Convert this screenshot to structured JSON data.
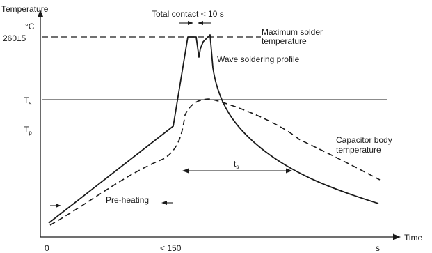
{
  "diagram": {
    "y_axis": {
      "title": "Temperature",
      "unit": "°C",
      "ticks": {
        "max_temp": "260±5",
        "t_s": "T",
        "t_s_sub": "s",
        "t_p": "T",
        "t_p_sub": "p"
      }
    },
    "x_axis": {
      "title": "Time",
      "ticks": {
        "origin": "0",
        "preheat_end": "< 150",
        "end": "s"
      }
    },
    "labels": {
      "total_contact": "Total contact < 10 s",
      "max_solder_line1": "Maximum solder",
      "max_solder_line2": "temperature",
      "wave_profile": "Wave soldering profile",
      "capacitor_line1": "Capacitor body",
      "capacitor_line2": "temperature",
      "t_s_span": "t",
      "t_s_span_sub": "s",
      "preheating": "Pre-heating"
    }
  }
}
